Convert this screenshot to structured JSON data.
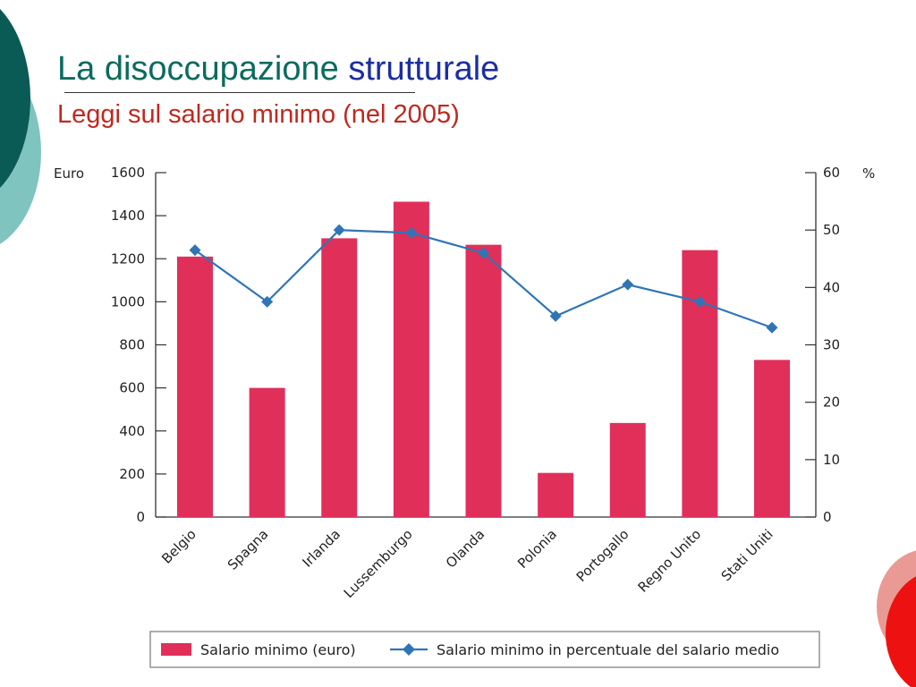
{
  "slide": {
    "title_part1": "La disoccupazione",
    "title_part2": "strutturale",
    "subtitle": "Leggi sul salario minimo (nel 2005)"
  },
  "colors": {
    "bar": "#e0305a",
    "line": "#2f75b5",
    "deco_teal_dark": "#0a5a55",
    "deco_teal_light": "#7fc4bf",
    "deco_red": "#ee1111",
    "deco_pink": "#e99a95"
  },
  "chart_data": {
    "type": "bar",
    "title": "",
    "categories": [
      "Belgio",
      "Spagna",
      "Irlanda",
      "Lussemburgo",
      "Olanda",
      "Polonia",
      "Portogallo",
      "Regno Unito",
      "Stati Uniti"
    ],
    "series": [
      {
        "name": "Salario minimo (euro)",
        "type": "bar",
        "axis": "left",
        "values": [
          1210,
          600,
          1295,
          1465,
          1265,
          205,
          437,
          1240,
          730
        ]
      },
      {
        "name": "Salario minimo in percentuale del salario medio",
        "type": "line",
        "marker": "diamond",
        "axis": "right",
        "values": [
          46.5,
          37.5,
          50,
          49.5,
          46,
          35,
          40.5,
          37.5,
          33
        ]
      }
    ],
    "ylabel": "Euro",
    "ylim": [
      0,
      1600
    ],
    "yticks": [
      "0",
      "200",
      "400",
      "600",
      "800",
      "1000",
      "1200",
      "1400",
      "1600"
    ],
    "y2label": "%",
    "y2lim": [
      0,
      60
    ],
    "y2ticks": [
      "0",
      "10",
      "20",
      "30",
      "40",
      "50",
      "60"
    ],
    "grid": false,
    "legend_position": "bottom"
  }
}
